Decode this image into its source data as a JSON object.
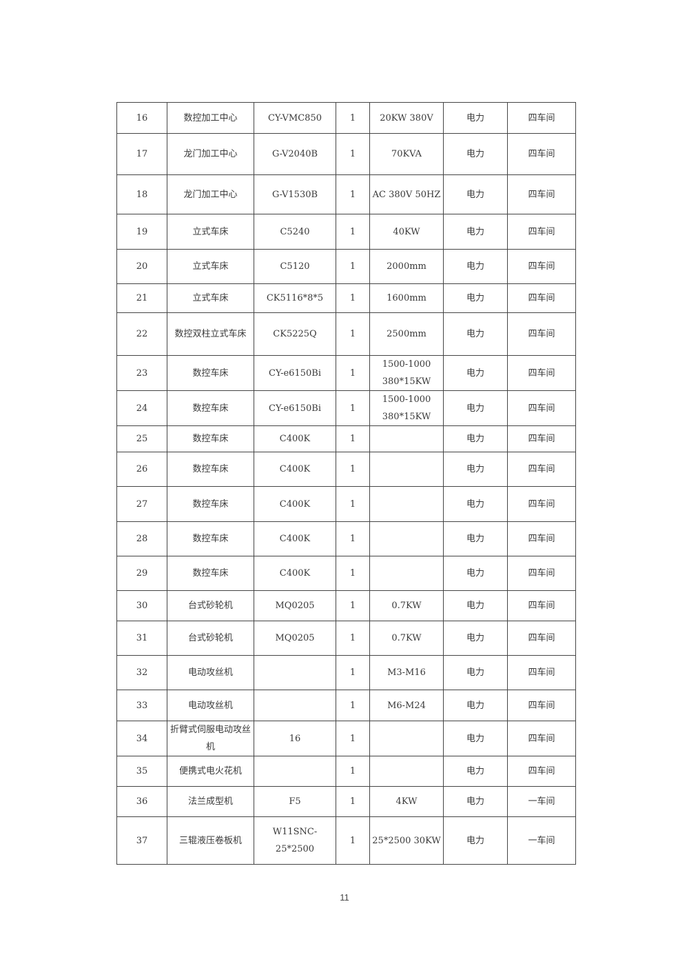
{
  "table": {
    "rows": [
      [
        "16",
        "数控加工中心",
        "CY-VMC850",
        "1",
        "20KW 380V",
        "电力",
        "四车间"
      ],
      [
        "17",
        "龙门加工中心",
        "G-V2040B",
        "1",
        "70KVA",
        "电力",
        "四车间"
      ],
      [
        "18",
        "龙门加工中心",
        "G-V1530B",
        "1",
        "AC 380V 50HZ",
        "电力",
        "四车间"
      ],
      [
        "19",
        "立式车床",
        "C5240",
        "1",
        "40KW",
        "电力",
        "四车间"
      ],
      [
        "20",
        "立式车床",
        "C5120",
        "1",
        "2000mm",
        "电力",
        "四车间"
      ],
      [
        "21",
        "立式车床",
        "CK5116*8*5",
        "1",
        "1600mm",
        "电力",
        "四车间"
      ],
      [
        "22",
        "数控双柱立式车床",
        "CK5225Q",
        "1",
        "2500mm",
        "电力",
        "四车间"
      ],
      [
        "23",
        "数控车床",
        "CY-e6150Bi",
        "1",
        "1500-1000 380*15KW",
        "电力",
        "四车间"
      ],
      [
        "24",
        "数控车床",
        "CY-e6150Bi",
        "1",
        "1500-1000 380*15KW",
        "电力",
        "四车间"
      ],
      [
        "25",
        "数控车床",
        "C400K",
        "1",
        "",
        "电力",
        "四车间"
      ],
      [
        "26",
        "数控车床",
        "C400K",
        "1",
        "",
        "电力",
        "四车间"
      ],
      [
        "27",
        "数控车床",
        "C400K",
        "1",
        "",
        "电力",
        "四车间"
      ],
      [
        "28",
        "数控车床",
        "C400K",
        "1",
        "",
        "电力",
        "四车间"
      ],
      [
        "29",
        "数控车床",
        "C400K",
        "1",
        "",
        "电力",
        "四车间"
      ],
      [
        "30",
        "台式砂轮机",
        "MQ0205",
        "1",
        "0.7KW",
        "电力",
        "四车间"
      ],
      [
        "31",
        "台式砂轮机",
        "MQ0205",
        "1",
        "0.7KW",
        "电力",
        "四车间"
      ],
      [
        "32",
        "电动攻丝机",
        "",
        "1",
        "M3-M16",
        "电力",
        "四车间"
      ],
      [
        "33",
        "电动攻丝机",
        "",
        "1",
        "M6-M24",
        "电力",
        "四车间"
      ],
      [
        "34",
        "折臂式伺服电动攻丝机",
        "16",
        "1",
        "",
        "电力",
        "四车间"
      ],
      [
        "35",
        "便携式电火花机",
        "",
        "1",
        "",
        "电力",
        "四车间"
      ],
      [
        "36",
        "法兰成型机",
        "F5",
        "1",
        "4KW",
        "电力",
        "一车间"
      ],
      [
        "37",
        "三辊液压卷板机",
        "W11SNC-25*2500",
        "1",
        "25*2500 30KW",
        "电力",
        "一车间"
      ]
    ]
  },
  "page_number": "11"
}
